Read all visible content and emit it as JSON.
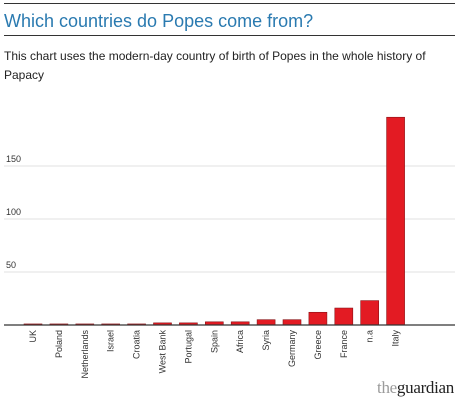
{
  "header": {
    "title": "Which countries do Popes come from?",
    "subtitle": "This chart uses the modern-day country of birth of Popes in the whole history of Papacy"
  },
  "brand": {
    "the": "the",
    "name": "guardian"
  },
  "colors": {
    "bar": "#e31b23",
    "bar_stroke": "#8a1216",
    "title": "#2a7ab0",
    "grid": "#e2e2e2",
    "axis": "#333333"
  },
  "chart_data": {
    "type": "bar",
    "categories": [
      "UK",
      "Poland",
      "Netherlands",
      "Israel",
      "Croatia",
      "West Bank",
      "Portugal",
      "Spain",
      "Africa",
      "Syria",
      "Germany",
      "Greece",
      "France",
      "n.a",
      "Italy"
    ],
    "values": [
      1,
      1,
      1,
      1,
      1,
      2,
      2,
      3,
      3,
      5,
      5,
      12,
      16,
      23,
      196
    ],
    "yticks": [
      50,
      100,
      150
    ],
    "ylim": [
      0,
      200
    ],
    "grid": true,
    "legend": "none"
  }
}
